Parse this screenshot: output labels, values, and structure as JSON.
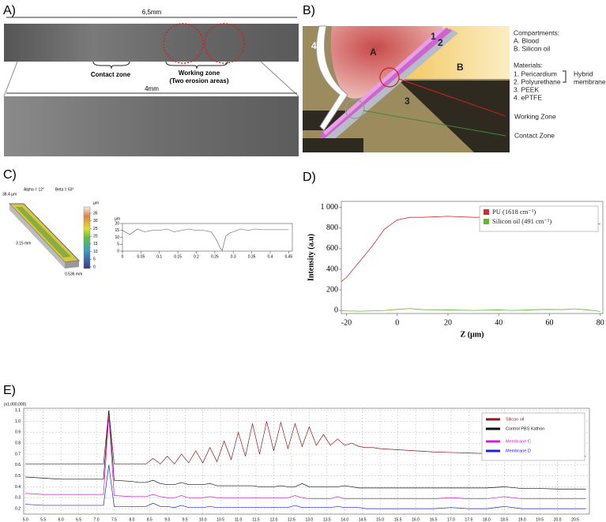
{
  "panel_labels": [
    "A)",
    "B)",
    "C)",
    "D)",
    "E)"
  ],
  "panel_a": {
    "top_scale": "6,5mm",
    "bottom_scale": "4mm",
    "contact_zone": "Contact zone",
    "working_zone": [
      "Working zone",
      "(Two erosion areas)"
    ]
  },
  "panel_b": {
    "regions": [
      "A",
      "B",
      "1",
      "2",
      "3",
      "4"
    ],
    "compartments_title": "Compartments:",
    "compartments": [
      "A.  Blood",
      "B.  Silicon oil"
    ],
    "materials_title": "Materials:",
    "materials": [
      "1.  Pericardium",
      "2.  Polyurethane",
      "3.  PEEK",
      "4.  ePTFE"
    ],
    "hybrid": [
      "Hybrid",
      "membrane"
    ],
    "working_zone": "Working Zone",
    "contact_zone": "Contact Zone"
  },
  "panel_c": {
    "height_label": "38.4 µm",
    "alpha": "Alpha = 12°",
    "beta": "Beta = 63°",
    "colorbar_unit": "µm",
    "colorbar_ticks": [
      0,
      5,
      10,
      15,
      20,
      25,
      30,
      35
    ],
    "length": "3.15 mm",
    "width": "0.536 mm"
  },
  "chart_data": [
    {
      "type": "line",
      "ylabel": "µm",
      "x": [
        0,
        0.02,
        0.04,
        0.06,
        0.08,
        0.1,
        0.12,
        0.14,
        0.16,
        0.18,
        0.2,
        0.22,
        0.24,
        0.255,
        0.265,
        0.27,
        0.28,
        0.29,
        0.3,
        0.32,
        0.34,
        0.36,
        0.38,
        0.4,
        0.42,
        0.44,
        0.45
      ],
      "series": [
        {
          "color": "#555555",
          "values": [
            15,
            12,
            16,
            14,
            15,
            15,
            16,
            14,
            15,
            16,
            15,
            15,
            14,
            8,
            2,
            0.5,
            11,
            13,
            14,
            16,
            15,
            16,
            15.5,
            15.5,
            15.5,
            15.5,
            15.5
          ]
        }
      ],
      "xlim": [
        0,
        0.46
      ],
      "xticks": [
        0,
        0.05,
        0.1,
        0.15,
        0.2,
        0.25,
        0.3,
        0.35,
        0.4,
        0.45
      ],
      "ylim": [
        0,
        20
      ],
      "yticks": [
        0,
        5,
        10,
        15,
        20
      ],
      "grid": false
    },
    {
      "type": "line",
      "xlabel": "Z (µm)",
      "ylabel": "Intensity (a.u)",
      "x": [
        -22,
        -20,
        -15,
        -10,
        -5,
        0,
        5,
        10,
        20,
        30,
        40,
        45,
        50,
        55,
        60,
        65,
        70,
        75,
        80
      ],
      "series": [
        {
          "name": "PU (1618 cm⁻¹)",
          "color": "#d62a2a",
          "values": [
            280,
            320,
            470,
            620,
            790,
            880,
            905,
            905,
            915,
            905,
            905,
            905,
            895,
            880,
            860,
            845,
            825,
            830,
            840
          ]
        },
        {
          "name": "Silicon oil (491 cm⁻¹)",
          "color": "#5fb830",
          "values": [
            0,
            -5,
            -8,
            -5,
            0,
            10,
            18,
            8,
            5,
            0,
            5,
            0,
            3,
            8,
            10,
            8,
            15,
            5,
            -10
          ]
        }
      ],
      "xlim": [
        -22,
        81
      ],
      "xticks": [
        -20,
        0,
        20,
        40,
        60,
        80
      ],
      "ylim": [
        -30,
        1060
      ],
      "yticks": [
        0,
        200,
        400,
        600,
        800,
        {
          "value": 1000,
          "label": "1 000"
        }
      ],
      "grid": false,
      "legend": "upper right"
    },
    {
      "type": "line",
      "annotation": "(x1,000,000)",
      "x": [
        5.0,
        5.5,
        6.0,
        6.5,
        7.0,
        7.2,
        7.35,
        7.5,
        8.0,
        8.2,
        8.4,
        8.6,
        8.8,
        9.0,
        9.2,
        9.4,
        9.6,
        9.8,
        10.0,
        10.2,
        10.4,
        10.6,
        10.8,
        11.0,
        11.2,
        11.4,
        11.6,
        11.8,
        12.0,
        12.2,
        12.4,
        12.6,
        12.8,
        13.0,
        13.2,
        13.4,
        13.6,
        13.8,
        14.0,
        14.2,
        14.4,
        14.6,
        14.8,
        15.0,
        15.5,
        16.0,
        16.5,
        17.0,
        17.5,
        18.0,
        18.5,
        19.0,
        19.5,
        20.0,
        20.5,
        20.8
      ],
      "series": [
        {
          "name": "Silicon oil",
          "color": "#8b1a1a",
          "values": [
            0.61,
            0.61,
            0.61,
            0.61,
            0.61,
            0.61,
            1.1,
            0.61,
            0.61,
            0.61,
            0.61,
            0.66,
            0.61,
            0.68,
            0.61,
            0.7,
            0.62,
            0.73,
            0.62,
            0.76,
            0.63,
            0.82,
            0.65,
            0.9,
            0.68,
            0.98,
            0.7,
            1.0,
            0.73,
            0.99,
            0.75,
            0.98,
            0.77,
            0.95,
            0.78,
            0.88,
            0.78,
            0.84,
            0.78,
            0.8,
            0.77,
            0.76,
            0.76,
            0.75,
            0.74,
            0.73,
            0.72,
            0.715,
            0.71,
            0.705,
            0.7,
            0.695,
            0.69,
            0.685,
            0.68,
            0.68
          ]
        },
        {
          "name": "Control PBS Kathon",
          "color": "#111111",
          "values": [
            0.49,
            0.48,
            0.47,
            0.47,
            0.47,
            0.47,
            1.1,
            0.46,
            0.45,
            0.44,
            0.44,
            0.46,
            0.43,
            0.42,
            0.42,
            0.44,
            0.42,
            0.42,
            0.42,
            0.43,
            0.41,
            0.41,
            0.41,
            0.41,
            0.41,
            0.41,
            0.4,
            0.4,
            0.4,
            0.41,
            0.4,
            0.4,
            0.43,
            0.4,
            0.4,
            0.4,
            0.4,
            0.4,
            0.41,
            0.4,
            0.39,
            0.39,
            0.39,
            0.39,
            0.39,
            0.39,
            0.39,
            0.39,
            0.39,
            0.39,
            0.4,
            0.385,
            0.385,
            0.38,
            0.38,
            0.38
          ]
        },
        {
          "name": "Membrane C",
          "color": "#d020d0",
          "values": [
            0.34,
            0.33,
            0.33,
            0.33,
            0.33,
            0.33,
            1.05,
            0.32,
            0.31,
            0.31,
            0.31,
            0.33,
            0.31,
            0.3,
            0.3,
            0.32,
            0.3,
            0.3,
            0.3,
            0.31,
            0.3,
            0.3,
            0.3,
            0.3,
            0.3,
            0.3,
            0.3,
            0.3,
            0.3,
            0.3,
            0.3,
            0.32,
            0.3,
            0.29,
            0.29,
            0.29,
            0.29,
            0.31,
            0.29,
            0.29,
            0.29,
            0.29,
            0.29,
            0.29,
            0.29,
            0.29,
            0.29,
            0.3,
            0.29,
            0.29,
            0.31,
            0.29,
            0.29,
            0.29,
            0.29,
            0.29
          ]
        },
        {
          "name": "Membrane D",
          "color": "#2020e0",
          "values": [
            0.24,
            0.23,
            0.23,
            0.23,
            0.23,
            0.23,
            0.6,
            0.22,
            0.22,
            0.22,
            0.22,
            0.25,
            0.22,
            0.22,
            0.21,
            0.23,
            0.21,
            0.21,
            0.21,
            0.22,
            0.21,
            0.21,
            0.21,
            0.21,
            0.21,
            0.21,
            0.21,
            0.21,
            0.21,
            0.21,
            0.21,
            0.23,
            0.21,
            0.21,
            0.21,
            0.21,
            0.21,
            0.22,
            0.21,
            0.21,
            0.21,
            0.2,
            0.2,
            0.2,
            0.2,
            0.2,
            0.2,
            0.21,
            0.2,
            0.2,
            0.22,
            0.2,
            0.2,
            0.2,
            0.2,
            0.2
          ]
        }
      ],
      "xlim": [
        4.95,
        20.9
      ],
      "xticks": [
        {
          "value": 5,
          "label": "5.0"
        },
        5.5,
        {
          "value": 6,
          "label": "6.0"
        },
        6.5,
        {
          "value": 7,
          "label": "7.0"
        },
        7.5,
        {
          "value": 8,
          "label": "8.0"
        },
        8.5,
        {
          "value": 9,
          "label": "9.0"
        },
        9.5,
        {
          "value": 10,
          "label": "10.0"
        },
        10.5,
        {
          "value": 11,
          "label": "11.0"
        },
        11.5,
        {
          "value": 12,
          "label": "12.0"
        },
        12.5,
        {
          "value": 13,
          "label": "13.0"
        },
        13.5,
        {
          "value": 14,
          "label": "14.0"
        },
        14.5,
        {
          "value": 15,
          "label": "15.0"
        },
        15.5,
        {
          "value": 16,
          "label": "16.0"
        },
        16.5,
        {
          "value": 17,
          "label": "17.0"
        },
        17.5,
        {
          "value": 18,
          "label": "18.0"
        },
        18.5,
        {
          "value": 19,
          "label": "19.0"
        },
        19.5,
        {
          "value": 20,
          "label": "20.0"
        },
        20.5
      ],
      "ylim": [
        0.15,
        1.12
      ],
      "yticks": [
        0.2,
        0.3,
        0.4,
        0.5,
        0.6,
        0.7,
        0.8,
        0.9,
        {
          "value": 1,
          "label": "1.0"
        },
        1.1
      ],
      "grid": true,
      "legend": "upper right"
    }
  ]
}
